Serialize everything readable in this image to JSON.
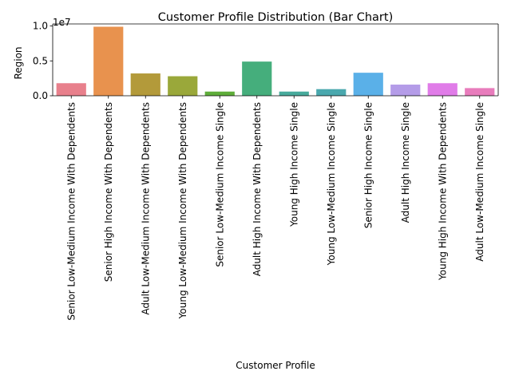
{
  "chart_data": {
    "type": "bar",
    "title": "Customer Profile Distribution (Bar Chart)",
    "xlabel": "Customer Profile",
    "ylabel": "Region",
    "y_offset_label": "1e7",
    "y_scale": 10000000,
    "ylim": [
      0,
      10300000
    ],
    "yticks": [
      0,
      5000000,
      10000000
    ],
    "ytick_labels": [
      "0.0",
      "0.5",
      "1.0"
    ],
    "grid": false,
    "legend": "none",
    "categories": [
      "Senior Low-Medium Income With Dependents",
      "Senior High Income With Dependents",
      "Adult Low-Medium Income With Dependents",
      "Young Low-Medium Income With Dependents",
      "Senior Low-Medium Income Single",
      "Adult High Income With Dependents",
      "Young High Income Single",
      "Young Low-Medium Income Single",
      "Senior High Income Single",
      "Adult High Income Single",
      "Young High Income With Dependents",
      "Adult Low-Medium Income Single"
    ],
    "values": [
      1800000,
      9900000,
      3200000,
      2800000,
      600000,
      4900000,
      600000,
      950000,
      3300000,
      1600000,
      1800000,
      1100000
    ],
    "colors": [
      "#e8808c",
      "#e8924e",
      "#b39a3a",
      "#9aa83a",
      "#5fae3a",
      "#45ae7c",
      "#48ab9c",
      "#4aa8ae",
      "#5ab0e8",
      "#b49ce8",
      "#e07ce8",
      "#e87cbc"
    ]
  }
}
